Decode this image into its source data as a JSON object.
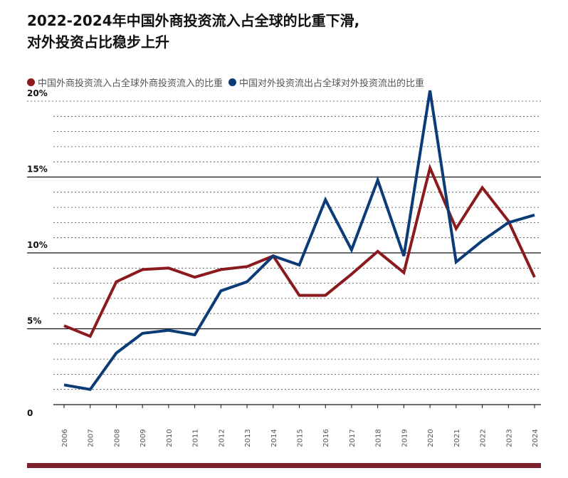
{
  "title_line1": "2022-2024年中国外商投资流入占全球的比重下滑,",
  "title_line2": "对外投资占比稳步上升",
  "colors": {
    "inflow": "#8b1a1f",
    "outflow": "#0c3c78",
    "bottom_bar": "#7a1f2b"
  },
  "chart_data": {
    "type": "line",
    "title": "",
    "xlabel": "",
    "ylabel": "",
    "ylim": [
      0,
      20
    ],
    "y_ticks": [
      {
        "value": 0,
        "label": "0"
      },
      {
        "value": 5,
        "label": "5%"
      },
      {
        "value": 10,
        "label": "10%"
      },
      {
        "value": 15,
        "label": "15%"
      },
      {
        "value": 20,
        "label": "20%"
      }
    ],
    "grid": true,
    "legend_position": "top-left",
    "x": [
      "2006",
      "2007",
      "2008",
      "2009",
      "2010",
      "2011",
      "2012",
      "2013",
      "2014",
      "2015",
      "2016",
      "2017",
      "2018",
      "2019",
      "2020",
      "2021",
      "2022",
      "2023",
      "2024"
    ],
    "series": [
      {
        "name": "中国外商投资流入占全球外商投资流入的比重",
        "color": "#8b1a1f",
        "values": [
          5.2,
          4.5,
          8.1,
          8.9,
          9.0,
          8.4,
          8.9,
          9.1,
          9.8,
          7.2,
          7.2,
          8.6,
          10.1,
          8.7,
          15.6,
          11.6,
          14.3,
          12.1,
          8.4
        ]
      },
      {
        "name": "中国对外投资流出占全球对外投资流出的比重",
        "color": "#0c3c78",
        "values": [
          1.3,
          1.0,
          3.4,
          4.7,
          4.9,
          4.6,
          7.5,
          8.1,
          9.8,
          9.2,
          13.5,
          10.2,
          14.8,
          9.8,
          20.7,
          9.4,
          10.8,
          12.0,
          12.5
        ]
      }
    ]
  }
}
